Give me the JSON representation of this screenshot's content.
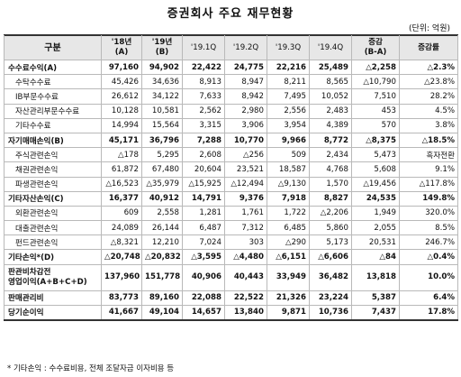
{
  "title": "증권회사 주요 재무현황",
  "unit": "(단위: 억원)",
  "headers": {
    "item": "구분",
    "y18_a": "'18년",
    "y18_b": "(A)",
    "y19_a": "'19년",
    "y19_b": "(B)",
    "q1": "'19.1Q",
    "q2": "'19.2Q",
    "q3": "'19.3Q",
    "q4": "'19.4Q",
    "chg_a": "증감",
    "chg_b": "(B-A)",
    "rate": "증감률"
  },
  "rows": [
    {
      "label": "수수료수익(A)",
      "type": "major",
      "y18": "97,160",
      "y19": "94,902",
      "q1": "22,422",
      "q2": "24,775",
      "q3": "22,216",
      "q4": "25,489",
      "chg": "△2,258",
      "rate": "△2.3%"
    },
    {
      "label": "수탁수수료",
      "type": "minor",
      "y18": "45,426",
      "y19": "34,636",
      "q1": "8,913",
      "q2": "8,947",
      "q3": "8,211",
      "q4": "8,565",
      "chg": "△10,790",
      "rate": "△23.8%"
    },
    {
      "label": "IB부문수수료",
      "type": "minor",
      "y18": "26,612",
      "y19": "34,122",
      "q1": "7,633",
      "q2": "8,942",
      "q3": "7,495",
      "q4": "10,052",
      "chg": "7,510",
      "rate": "28.2%"
    },
    {
      "label": "자산관리부문수수료",
      "type": "minor",
      "y18": "10,128",
      "y19": "10,581",
      "q1": "2,562",
      "q2": "2,980",
      "q3": "2,556",
      "q4": "2,483",
      "chg": "453",
      "rate": "4.5%"
    },
    {
      "label": "기타수수료",
      "type": "minor",
      "y18": "14,994",
      "y19": "15,564",
      "q1": "3,315",
      "q2": "3,906",
      "q3": "3,954",
      "q4": "4,389",
      "chg": "570",
      "rate": "3.8%"
    },
    {
      "label": "자기매매손익(B)",
      "type": "major",
      "y18": "45,171",
      "y19": "36,796",
      "q1": "7,288",
      "q2": "10,770",
      "q3": "9,966",
      "q4": "8,772",
      "chg": "△8,375",
      "rate": "△18.5%"
    },
    {
      "label": "주식관련손익",
      "type": "minor",
      "y18": "△178",
      "y19": "5,295",
      "q1": "2,608",
      "q2": "△256",
      "q3": "509",
      "q4": "2,434",
      "chg": "5,473",
      "rate": "흑자전환"
    },
    {
      "label": "채권관련손익",
      "type": "minor",
      "y18": "61,872",
      "y19": "67,480",
      "q1": "20,604",
      "q2": "23,521",
      "q3": "18,587",
      "q4": "4,768",
      "chg": "5,608",
      "rate": "9.1%"
    },
    {
      "label": "파생관련손익",
      "type": "minor",
      "y18": "△16,523",
      "y19": "△35,979",
      "q1": "△15,925",
      "q2": "△12,494",
      "q3": "△9,130",
      "q4": "1,570",
      "chg": "△19,456",
      "rate": "△117.8%"
    },
    {
      "label": "기타자산손익(C)",
      "type": "major",
      "y18": "16,377",
      "y19": "40,912",
      "q1": "14,791",
      "q2": "9,376",
      "q3": "7,918",
      "q4": "8,827",
      "chg": "24,535",
      "rate": "149.8%"
    },
    {
      "label": "외환관련손익",
      "type": "minor",
      "y18": "609",
      "y19": "2,558",
      "q1": "1,281",
      "q2": "1,761",
      "q3": "1,722",
      "q4": "△2,206",
      "chg": "1,949",
      "rate": "320.0%"
    },
    {
      "label": "대출관련손익",
      "type": "minor",
      "y18": "24,089",
      "y19": "26,144",
      "q1": "6,487",
      "q2": "7,312",
      "q3": "6,485",
      "q4": "5,860",
      "chg": "2,055",
      "rate": "8.5%"
    },
    {
      "label": "펀드관련손익",
      "type": "minor",
      "y18": "△8,321",
      "y19": "12,210",
      "q1": "7,024",
      "q2": "303",
      "q3": "△290",
      "q4": "5,173",
      "chg": "20,531",
      "rate": "246.7%"
    },
    {
      "label": "기타손익*(D)",
      "type": "major",
      "y18": "△20,748",
      "y19": "△20,832",
      "q1": "△3,595",
      "q2": "△4,480",
      "q3": "△6,151",
      "q4": "△6,606",
      "chg": "△84",
      "rate": "△0.4%"
    },
    {
      "label": "판관비차감전",
      "label2": "영업이익(A+B+C+D)",
      "type": "major tall",
      "y18": "137,960",
      "y19": "151,778",
      "q1": "40,906",
      "q2": "40,443",
      "q3": "33,949",
      "q4": "36,482",
      "chg": "13,818",
      "rate": "10.0%"
    },
    {
      "label": "판매관리비",
      "type": "major",
      "y18": "83,773",
      "y19": "89,160",
      "q1": "22,088",
      "q2": "22,522",
      "q3": "21,326",
      "q4": "23,224",
      "chg": "5,387",
      "rate": "6.4%"
    },
    {
      "label": "당기순이익",
      "type": "major",
      "y18": "41,667",
      "y19": "49,104",
      "q1": "14,657",
      "q2": "13,840",
      "q3": "9,871",
      "q4": "10,736",
      "chg": "7,437",
      "rate": "17.8%"
    }
  ],
  "footnote": "* 기타손익 : 수수료비용, 전체 조달자금 이자비용 등"
}
